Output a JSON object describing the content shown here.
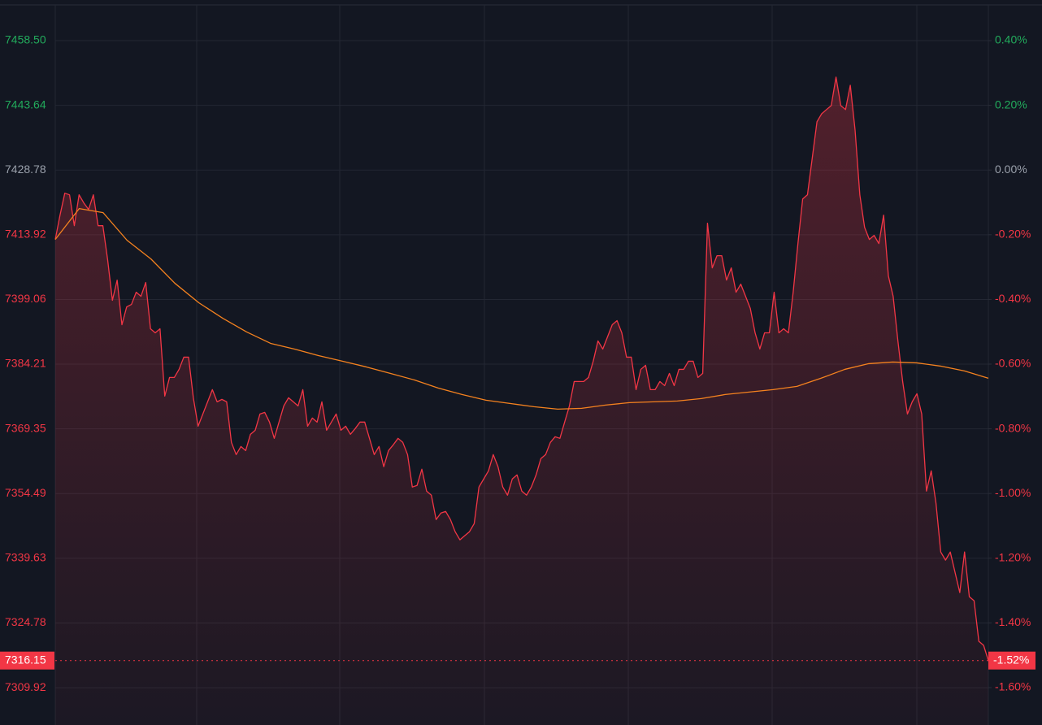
{
  "chart_data": {
    "type": "line",
    "ylim": [
      7301.35,
      7466.7
    ],
    "yticks": [
      {
        "value": 7458.5,
        "label": "7458.50"
      },
      7443.64,
      7428.78,
      7413.92,
      7399.06,
      7384.21,
      7369.35,
      7354.49,
      7339.63,
      7324.78,
      7309.92
    ],
    "y2lim": [
      -1.7156,
      0.5106
    ],
    "y2ticks": [
      {
        "value": 0.4,
        "label": "0.40%"
      },
      {
        "value": 0.2,
        "label": "0.20%"
      },
      {
        "value": 0,
        "label": "0.00%"
      },
      {
        "value": -0.2,
        "label": "-0.20%"
      },
      {
        "value": -0.4,
        "label": "-0.40%"
      },
      {
        "value": -0.6,
        "label": "-0.60%"
      },
      {
        "value": -0.8,
        "label": "-0.80%"
      },
      {
        "value": -1.0,
        "label": "-1.00%"
      },
      {
        "value": -1.2,
        "label": "-1.20%"
      },
      {
        "value": -1.4,
        "label": "-1.40%"
      },
      {
        "value": -1.6,
        "label": "-1.60%"
      }
    ],
    "grid": true,
    "up_color": "#22ab5c",
    "flat_color": "#9aa0ab",
    "down_color": "#f23645",
    "last_price": 7316.15,
    "last_change": {
      "value": -1.52,
      "label": "-1.52%"
    },
    "series": [
      {
        "color": "#f23645",
        "fill": true,
        "values": [
          7412.83,
          7418.43,
          7423.46,
          7423.09,
          7416.0,
          7423.09,
          7421.22,
          7419.73,
          7423.09,
          7416.0,
          7416.0,
          7408.17,
          7398.86,
          7403.51,
          7393.26,
          7397.36,
          7397.92,
          7400.72,
          7399.79,
          7402.96,
          7392.33,
          7391.4,
          7392.33,
          7376.86,
          7381.15,
          7381.15,
          7383.01,
          7385.81,
          7385.81,
          7376.49,
          7369.96,
          7372.76,
          7375.56,
          7378.35,
          7375.56,
          7376.12,
          7375.56,
          7366.24,
          7363.44,
          7365.3,
          7364.37,
          7368.1,
          7369.03,
          7372.76,
          7373.13,
          7370.9,
          7367.17,
          7370.9,
          7374.62,
          7376.49,
          7375.56,
          7374.62,
          7378.35,
          7369.96,
          7371.83,
          7370.9,
          7375.56,
          7369.03,
          7370.9,
          7372.76,
          7369.03,
          7369.96,
          7368.1,
          7369.41,
          7370.9,
          7370.9,
          7367.17,
          7363.44,
          7365.3,
          7360.65,
          7364.37,
          7365.68,
          7367.17,
          7366.24,
          7363.44,
          7355.99,
          7356.36,
          7360.09,
          7355.05,
          7354.12,
          7348.53,
          7350.02,
          7350.39,
          7348.53,
          7345.73,
          7343.87,
          7344.8,
          7345.73,
          7347.6,
          7355.99,
          7357.85,
          7359.71,
          7363.44,
          7360.65,
          7355.99,
          7354.12,
          7357.85,
          7358.78,
          7355.05,
          7354.12,
          7355.99,
          7358.78,
          7362.51,
          7363.44,
          7366.24,
          7367.54,
          7367.17,
          7370.9,
          7374.62,
          7380.22,
          7380.22,
          7380.22,
          7381.15,
          7384.88,
          7389.54,
          7387.67,
          7390.47,
          7393.26,
          7394.2,
          7391.4,
          7385.81,
          7385.81,
          7378.35,
          7383.01,
          7383.94,
          7378.35,
          7378.35,
          7380.22,
          7379.28,
          7382.08,
          7379.28,
          7383.01,
          7383.01,
          7384.88,
          7384.88,
          7381.15,
          7382.08,
          7416.56,
          7406.31,
          7409.11,
          7409.11,
          7403.51,
          7406.31,
          7400.72,
          7402.58,
          7399.79,
          7396.99,
          7391.4,
          7387.67,
          7391.4,
          7391.4,
          7400.72,
          7391.4,
          7392.33,
          7391.4,
          7400.72,
          7411.9,
          7422.15,
          7423.09,
          7431.47,
          7439.86,
          7441.72,
          7442.66,
          7443.59,
          7450.11,
          7443.59,
          7442.66,
          7448.25,
          7438.0,
          7423.09,
          7415.63,
          7412.83,
          7413.77,
          7411.9,
          7418.43,
          7404.45,
          7399.79,
          7389.54,
          7380.22,
          7372.76,
          7375.56,
          7377.42,
          7372.76,
          7355.05,
          7359.71,
          7352.26,
          7341.07,
          7339.21,
          7341.07,
          7336.41,
          7331.75,
          7341.07,
          7330.82,
          7329.89,
          7320.57,
          7319.64,
          7316.15
        ]
      },
      {
        "color": "#f5821f",
        "fill": false,
        "values": [
          7412.83,
          7419.92,
          7418.99,
          7412.65,
          7408.36,
          7402.77,
          7398.3,
          7394.75,
          7391.59,
          7388.98,
          7387.67,
          7386.18,
          7384.88,
          7383.57,
          7382.08,
          7380.59,
          7378.73,
          7377.23,
          7375.93,
          7375.18,
          7374.44,
          7373.88,
          7374.07,
          7374.81,
          7375.37,
          7375.56,
          7375.74,
          7376.3,
          7377.23,
          7377.79,
          7378.35,
          7379.1,
          7380.96,
          7383.01,
          7384.32,
          7384.69,
          7384.5,
          7383.76,
          7382.64,
          7380.96
        ]
      }
    ]
  }
}
